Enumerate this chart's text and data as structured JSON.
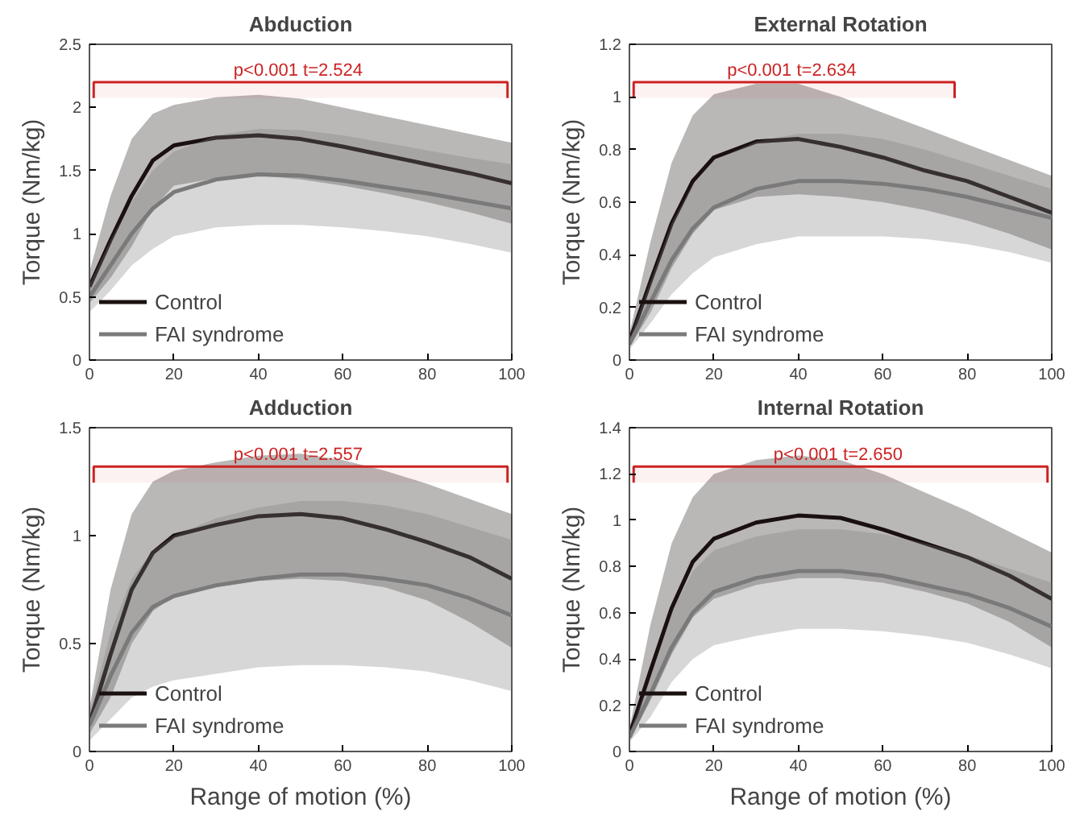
{
  "chart_data": [
    {
      "type": "line",
      "title": "Abduction",
      "ylabel": "Torque (Nm/kg)",
      "x": [
        0,
        5,
        10,
        15,
        20,
        30,
        40,
        50,
        60,
        70,
        80,
        90,
        100
      ],
      "xlim": [
        0,
        100
      ],
      "xticks": [
        0,
        20,
        40,
        60,
        80,
        100
      ],
      "ylim": [
        0,
        2.5
      ],
      "yticks": [
        0,
        0.5,
        1,
        1.5,
        2,
        2.5
      ],
      "legend": "bottom left",
      "grid": false,
      "series": [
        {
          "name": "Control",
          "color": "#1a1010",
          "values": [
            0.58,
            0.95,
            1.3,
            1.58,
            1.7,
            1.76,
            1.78,
            1.75,
            1.69,
            1.62,
            1.55,
            1.48,
            1.4
          ],
          "upper": [
            0.7,
            1.3,
            1.75,
            1.95,
            2.02,
            2.08,
            2.1,
            2.07,
            2.0,
            1.93,
            1.86,
            1.79,
            1.72
          ],
          "lower": [
            0.45,
            0.65,
            0.9,
            1.2,
            1.38,
            1.44,
            1.46,
            1.43,
            1.38,
            1.32,
            1.25,
            1.17,
            1.08
          ]
        },
        {
          "name": "FAI syndrome",
          "color": "#7a7a7a",
          "values": [
            0.5,
            0.75,
            1.0,
            1.2,
            1.33,
            1.43,
            1.47,
            1.46,
            1.42,
            1.37,
            1.32,
            1.26,
            1.2
          ],
          "upper": [
            0.6,
            0.95,
            1.25,
            1.5,
            1.65,
            1.78,
            1.83,
            1.82,
            1.78,
            1.72,
            1.66,
            1.6,
            1.55
          ],
          "lower": [
            0.38,
            0.55,
            0.75,
            0.88,
            0.98,
            1.05,
            1.07,
            1.07,
            1.05,
            1.02,
            0.98,
            0.92,
            0.85
          ]
        }
      ],
      "bands": [
        {
          "axis": "x",
          "from": 1,
          "to": 99,
          "label": "p<0.001  t=2.524",
          "color": "#cc2222"
        }
      ]
    },
    {
      "type": "line",
      "title": "External Rotation",
      "ylabel": "Torque (Nm/kg)",
      "x": [
        0,
        5,
        10,
        15,
        20,
        30,
        40,
        50,
        60,
        70,
        80,
        90,
        100
      ],
      "xlim": [
        0,
        100
      ],
      "xticks": [
        0,
        20,
        40,
        60,
        80,
        100
      ],
      "ylim": [
        0,
        1.2
      ],
      "yticks": [
        0,
        0.2,
        0.4,
        0.6,
        0.8,
        1,
        1.2
      ],
      "legend": "bottom left",
      "grid": false,
      "series": [
        {
          "name": "Control",
          "color": "#1a1010",
          "values": [
            0.07,
            0.3,
            0.52,
            0.68,
            0.77,
            0.83,
            0.84,
            0.81,
            0.77,
            0.72,
            0.68,
            0.62,
            0.56
          ],
          "upper": [
            0.1,
            0.45,
            0.75,
            0.93,
            1.01,
            1.05,
            1.05,
            1.0,
            0.94,
            0.88,
            0.82,
            0.76,
            0.7
          ],
          "lower": [
            0.05,
            0.18,
            0.35,
            0.48,
            0.57,
            0.62,
            0.63,
            0.62,
            0.6,
            0.57,
            0.53,
            0.48,
            0.42
          ]
        },
        {
          "name": "FAI syndrome",
          "color": "#7a7a7a",
          "values": [
            0.06,
            0.22,
            0.38,
            0.5,
            0.58,
            0.65,
            0.68,
            0.68,
            0.67,
            0.65,
            0.62,
            0.58,
            0.54
          ],
          "upper": [
            0.08,
            0.3,
            0.52,
            0.67,
            0.76,
            0.83,
            0.86,
            0.86,
            0.84,
            0.8,
            0.75,
            0.7,
            0.65
          ],
          "lower": [
            0.04,
            0.14,
            0.25,
            0.33,
            0.39,
            0.44,
            0.47,
            0.47,
            0.47,
            0.46,
            0.44,
            0.41,
            0.37
          ]
        }
      ],
      "bands": [
        {
          "axis": "x",
          "from": 1,
          "to": 77,
          "label": "p<0.001  t=2.634",
          "color": "#cc2222"
        }
      ]
    },
    {
      "type": "line",
      "title": "Adduction",
      "xlabel": "Range of motion (%)",
      "ylabel": "Torque (Nm/kg)",
      "x": [
        0,
        5,
        10,
        15,
        20,
        30,
        40,
        50,
        60,
        70,
        80,
        90,
        100
      ],
      "xlim": [
        0,
        100
      ],
      "xticks": [
        0,
        20,
        40,
        60,
        80,
        100
      ],
      "ylim": [
        0,
        1.5
      ],
      "yticks": [
        0,
        0.5,
        1,
        1.5
      ],
      "legend": "bottom left",
      "grid": false,
      "series": [
        {
          "name": "Control",
          "color": "#1a1010",
          "values": [
            0.13,
            0.45,
            0.75,
            0.92,
            1.0,
            1.05,
            1.09,
            1.1,
            1.08,
            1.03,
            0.97,
            0.9,
            0.8
          ],
          "upper": [
            0.2,
            0.75,
            1.1,
            1.25,
            1.3,
            1.34,
            1.37,
            1.38,
            1.35,
            1.3,
            1.24,
            1.17,
            1.1
          ],
          "lower": [
            0.08,
            0.25,
            0.5,
            0.65,
            0.72,
            0.76,
            0.79,
            0.8,
            0.79,
            0.76,
            0.7,
            0.6,
            0.48
          ]
        },
        {
          "name": "FAI syndrome",
          "color": "#7a7a7a",
          "values": [
            0.12,
            0.35,
            0.55,
            0.67,
            0.72,
            0.77,
            0.8,
            0.82,
            0.82,
            0.8,
            0.77,
            0.71,
            0.63
          ],
          "upper": [
            0.18,
            0.55,
            0.8,
            0.93,
            1.0,
            1.08,
            1.13,
            1.16,
            1.16,
            1.14,
            1.1,
            1.04,
            0.98
          ],
          "lower": [
            0.05,
            0.15,
            0.25,
            0.3,
            0.33,
            0.36,
            0.39,
            0.4,
            0.4,
            0.39,
            0.37,
            0.33,
            0.28
          ]
        }
      ],
      "bands": [
        {
          "axis": "x",
          "from": 1,
          "to": 99,
          "label": "p<0.001  t=2.557",
          "color": "#cc2222"
        }
      ]
    },
    {
      "type": "line",
      "title": "Internal Rotation",
      "xlabel": "Range of motion (%)",
      "ylabel": "Torque (Nm/kg)",
      "x": [
        0,
        5,
        10,
        15,
        20,
        30,
        40,
        50,
        60,
        70,
        80,
        90,
        100
      ],
      "xlim": [
        0,
        100
      ],
      "xticks": [
        0,
        20,
        40,
        60,
        80,
        100
      ],
      "ylim": [
        0,
        1.4
      ],
      "yticks": [
        0,
        0.2,
        0.4,
        0.6,
        0.8,
        1,
        1.2,
        1.4
      ],
      "legend": "bottom left",
      "grid": false,
      "series": [
        {
          "name": "Control",
          "color": "#1a1010",
          "values": [
            0.07,
            0.35,
            0.62,
            0.82,
            0.92,
            0.99,
            1.02,
            1.01,
            0.96,
            0.9,
            0.84,
            0.76,
            0.66
          ],
          "upper": [
            0.1,
            0.55,
            0.9,
            1.1,
            1.2,
            1.26,
            1.28,
            1.26,
            1.2,
            1.12,
            1.04,
            0.95,
            0.86
          ],
          "lower": [
            0.05,
            0.22,
            0.42,
            0.58,
            0.66,
            0.72,
            0.75,
            0.75,
            0.73,
            0.69,
            0.64,
            0.56,
            0.45
          ]
        },
        {
          "name": "FAI syndrome",
          "color": "#7a7a7a",
          "values": [
            0.06,
            0.25,
            0.45,
            0.6,
            0.69,
            0.75,
            0.78,
            0.78,
            0.76,
            0.72,
            0.68,
            0.62,
            0.54
          ],
          "upper": [
            0.08,
            0.32,
            0.6,
            0.78,
            0.87,
            0.93,
            0.96,
            0.96,
            0.94,
            0.9,
            0.85,
            0.79,
            0.73
          ],
          "lower": [
            0.04,
            0.15,
            0.3,
            0.4,
            0.46,
            0.5,
            0.53,
            0.53,
            0.52,
            0.5,
            0.47,
            0.42,
            0.36
          ]
        }
      ],
      "bands": [
        {
          "axis": "x",
          "from": 1,
          "to": 99,
          "label": "p<0.001  t=2.650",
          "color": "#cc2222"
        }
      ]
    }
  ]
}
